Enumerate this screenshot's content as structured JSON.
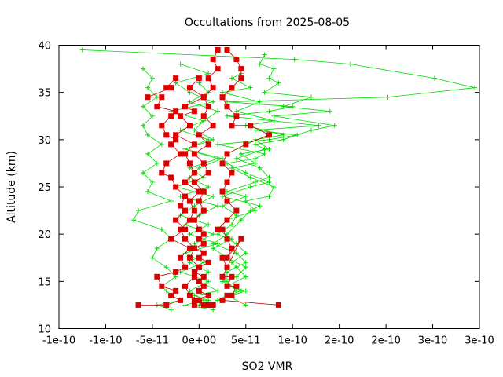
{
  "chart_data": {
    "type": "scatter",
    "title": "Occultations from 2025-08-05",
    "xlabel": "SO2 VMR",
    "ylabel": "Altitude (km)",
    "xlim": [
      -1.5e-10,
      3e-10
    ],
    "ylim": [
      10,
      40
    ],
    "xticks": [
      -1.5e-10,
      -1e-10,
      -5e-11,
      0,
      5e-11,
      1e-10,
      1.5e-10,
      2e-10,
      2.5e-10,
      3e-10
    ],
    "xtick_labels": [
      "-1e-10",
      "-1e-10",
      "-5e-11",
      "0e+00",
      "5e-11",
      "1e-10",
      "2e-10",
      "2e-10",
      "3e-10",
      "3e-10"
    ],
    "yticks": [
      10,
      15,
      20,
      25,
      30,
      35,
      40
    ],
    "ytick_labels": [
      "10",
      "15",
      "20",
      "25",
      "30",
      "35",
      "40"
    ],
    "grid": false,
    "legend": "none",
    "series": [
      {
        "color": "#00dd00",
        "marker": "plus",
        "x": [
          -1.25e-10,
          1.02e-10,
          1.62e-10,
          2.52e-10,
          2.95e-10,
          2.02e-10,
          3e-11,
          1e-10,
          7.5e-11,
          3e-11,
          1.28e-10,
          6e-11,
          1.05e-10,
          7.5e-11,
          2e-11,
          7e-11,
          6e-11,
          3e-11,
          5e-11,
          7.5e-11,
          5.5e-11,
          2.5e-11,
          6.5e-11,
          5.5e-11,
          4.5e-11,
          3e-11,
          1.5e-11,
          4e-11,
          5e-11,
          3e-11,
          3e-11,
          4e-11,
          2e-11
        ],
        "y": [
          39.5,
          38.5,
          38.0,
          36.5,
          35.5,
          34.5,
          34.0,
          33.5,
          33.0,
          32.5,
          31.5,
          31.0,
          30.5,
          30.0,
          29.5,
          28.5,
          28.0,
          27.5,
          26.5,
          25.5,
          25.0,
          24.0,
          23.0,
          22.5,
          21.5,
          20.0,
          19.0,
          18.0,
          17.0,
          16.0,
          15.0,
          14.0,
          13.0
        ]
      },
      {
        "color": "#00dd00",
        "marker": "plus",
        "x": [
          7e-11,
          6.5e-11,
          8e-11,
          7.5e-11,
          8.5e-11,
          7e-11,
          1.2e-10,
          9e-11,
          1.4e-10,
          8e-11,
          1.45e-10,
          1.2e-10,
          9e-11,
          6e-11,
          7e-11,
          4e-11,
          6.5e-11,
          7.5e-11,
          6e-11,
          3e-11,
          5e-11,
          2.5e-11,
          4e-11,
          3.5e-11,
          2e-11,
          4e-11,
          5e-11,
          3.5e-11,
          4e-11,
          5e-11,
          3e-11,
          5e-11,
          2e-11
        ],
        "y": [
          39.0,
          38.0,
          37.5,
          36.5,
          36.0,
          35.0,
          34.5,
          33.5,
          33.0,
          32.5,
          31.5,
          31.0,
          30.0,
          29.5,
          29.0,
          28.0,
          27.0,
          26.0,
          25.5,
          24.5,
          24.0,
          23.0,
          22.0,
          21.0,
          20.0,
          19.0,
          18.0,
          17.0,
          16.5,
          15.5,
          14.5,
          14.0,
          13.0
        ]
      },
      {
        "color": "#00dd00",
        "marker": "plus",
        "x": [
          -6e-11,
          -5e-11,
          -5.5e-11,
          -4.5e-11,
          -6e-11,
          -5e-11,
          -6e-11,
          -5.5e-11,
          -4e-11,
          -5.5e-11,
          -4.5e-11,
          -6e-11,
          -5e-11,
          -5.5e-11,
          -3e-11,
          -6.5e-11,
          -7e-11,
          -4e-11,
          -3e-11,
          -4.5e-11,
          -5e-11,
          -3.5e-11,
          -2.5e-11,
          -4e-11,
          -3.5e-11,
          -3e-11,
          -2e-11,
          -4.5e-11,
          -3e-11
        ],
        "y": [
          37.5,
          36.5,
          35.5,
          34.5,
          33.5,
          32.5,
          31.5,
          30.5,
          29.5,
          28.5,
          27.5,
          26.5,
          25.5,
          24.5,
          23.5,
          22.5,
          21.5,
          20.5,
          19.5,
          18.5,
          17.5,
          16.5,
          15.5,
          14.5,
          14.0,
          13.5,
          13.0,
          12.5,
          12.0
        ]
      },
      {
        "color": "#00dd00",
        "marker": "plus",
        "x": [
          -2e-11,
          1e-11,
          -2.5e-11,
          -1e-11,
          1.5e-11,
          -3e-11,
          5e-12,
          -2e-11,
          1e-11,
          -1.5e-11,
          2e-11,
          -1e-11,
          5e-12,
          -2.5e-11,
          1.5e-11,
          -5e-12,
          -2e-11,
          1e-11,
          -1e-11,
          2e-11,
          -1.5e-11,
          5e-12,
          -2e-11,
          1e-11,
          -1e-11,
          5e-12,
          -1.5e-11,
          1.5e-11
        ],
        "y": [
          38.0,
          37.0,
          36.0,
          35.0,
          34.0,
          33.0,
          32.0,
          31.0,
          30.0,
          29.0,
          28.0,
          27.0,
          26.0,
          25.0,
          24.0,
          23.0,
          22.0,
          21.0,
          20.0,
          19.0,
          18.0,
          17.0,
          16.0,
          15.0,
          14.0,
          13.0,
          12.5,
          12.0
        ]
      },
      {
        "color": "#00dd00",
        "marker": "plus",
        "x": [
          4.5e-11,
          3.5e-11,
          5.5e-11,
          2.5e-11,
          6.5e-11,
          4e-11,
          8e-11,
          5e-11,
          9e-11,
          6e-11,
          7.5e-11,
          4.5e-11,
          6e-11,
          3.5e-11,
          5.5e-11,
          8e-11,
          7.5e-11,
          5e-11,
          6e-11,
          3e-11,
          2e-11,
          3.5e-11,
          1.5e-11,
          3e-11,
          5e-11,
          4e-11,
          2.5e-11,
          4.5e-11,
          3e-11,
          5e-11
        ],
        "y": [
          37.0,
          36.5,
          35.5,
          35.0,
          34.0,
          33.0,
          32.0,
          31.5,
          30.5,
          30.0,
          29.0,
          28.5,
          27.5,
          27.0,
          26.0,
          25.0,
          24.0,
          23.5,
          22.5,
          21.5,
          20.5,
          19.5,
          18.5,
          17.5,
          16.5,
          15.5,
          15.0,
          14.0,
          13.5,
          12.5
        ]
      },
      {
        "color": "#00dd00",
        "marker": "plus",
        "x": [
          0.0,
          1e-11,
          -1e-11,
          2e-11,
          5e-12,
          -5e-12,
          1.5e-11,
          -1.5e-11,
          2.5e-11,
          0.0,
          -1e-11,
          1e-11,
          -2e-11,
          2e-11,
          0.0,
          -1.5e-11,
          1.5e-11,
          -5e-12,
          5e-12,
          -1e-11,
          1e-11,
          0.0,
          2e-11,
          -5e-12,
          1e-11,
          0.0
        ],
        "y": [
          36.0,
          35.0,
          34.0,
          33.0,
          32.0,
          31.0,
          30.0,
          29.0,
          28.0,
          27.0,
          26.0,
          25.0,
          24.0,
          23.0,
          22.0,
          21.0,
          20.0,
          19.0,
          18.0,
          17.0,
          16.0,
          15.0,
          14.0,
          13.5,
          13.0,
          12.5
        ]
      },
      {
        "color": "#dd0000",
        "marker": "square",
        "x": [
          2e-11,
          1.5e-11,
          2e-11,
          1e-11,
          1.5e-11,
          5e-12,
          1e-11,
          5e-12,
          1.5e-11,
          0.0,
          1e-11,
          -5e-12,
          5e-12,
          1e-11,
          -5e-12,
          5e-12,
          0.0,
          5e-12,
          -5e-12,
          0.0,
          5e-12,
          0.0,
          5e-12,
          -5e-12,
          5e-12,
          0.0,
          1e-11,
          0.0,
          -5e-12,
          5e-12,
          0.0,
          5e-12,
          0.0,
          1e-11,
          -5e-12,
          5e-12,
          1.5e-11,
          1e-11,
          1.2e-11
        ],
        "y": [
          39.5,
          38.5,
          37.5,
          36.5,
          35.5,
          34.5,
          33.5,
          32.5,
          31.5,
          30.5,
          29.5,
          28.5,
          27.5,
          26.5,
          25.5,
          24.5,
          23.5,
          22.5,
          21.5,
          20.5,
          20.0,
          19.5,
          19.0,
          18.5,
          18.0,
          17.5,
          17.0,
          16.5,
          16.0,
          15.5,
          15.0,
          14.5,
          14.0,
          13.5,
          13.0,
          12.5,
          12.5,
          12.5,
          12.5
        ]
      },
      {
        "color": "#dd0000",
        "marker": "square",
        "x": [
          3e-11,
          4e-11,
          4.5e-11,
          4.5e-11,
          3.5e-11,
          2.5e-11,
          3e-11,
          4e-11,
          3.5e-11,
          5.5e-11,
          7.5e-11,
          5e-11,
          3e-11,
          2.5e-11,
          3.5e-11,
          3e-11,
          2.5e-11,
          3e-11,
          4e-11,
          3e-11,
          2e-11,
          2.5e-11,
          3e-11,
          3.5e-11,
          3e-11,
          4.5e-11,
          3e-11,
          2.5e-11,
          3e-11,
          2.5e-11,
          3.5e-11,
          3e-11,
          4e-11,
          3.5e-11,
          3e-11,
          2.5e-11,
          8.5e-11
        ],
        "y": [
          39.5,
          38.5,
          37.5,
          36.5,
          35.5,
          34.5,
          33.5,
          32.5,
          31.5,
          31.5,
          30.5,
          29.5,
          28.5,
          27.5,
          26.5,
          25.5,
          24.5,
          23.5,
          22.5,
          21.5,
          20.5,
          20.5,
          19.5,
          18.5,
          17.5,
          19.5,
          16.5,
          17.5,
          16.5,
          15.5,
          15.5,
          14.5,
          14.5,
          13.5,
          13.5,
          13.0,
          12.5
        ]
      },
      {
        "color": "#dd0000",
        "marker": "square",
        "x": [
          -2.5e-11,
          -3.5e-11,
          -3e-11,
          -5.5e-11,
          -4e-11,
          -4.5e-11,
          -2.5e-11,
          -3e-11,
          -4e-11,
          -3.5e-11,
          -2.5e-11,
          -3e-11,
          -2e-11,
          -3.5e-11,
          -4e-11,
          -3e-11,
          -2.5e-11,
          -1.5e-11,
          -2e-11,
          -1.5e-11,
          -2.5e-11,
          -1.5e-11,
          -3e-11,
          -1e-11,
          -2e-11,
          -1.5e-11,
          -2.5e-11,
          -4.5e-11,
          -4e-11,
          -2.5e-11,
          -3e-11,
          -2e-11,
          -3.5e-11,
          -6.5e-11
        ],
        "y": [
          36.5,
          35.5,
          35.5,
          34.5,
          34.5,
          33.5,
          33.0,
          32.5,
          31.5,
          30.5,
          30.0,
          29.5,
          28.5,
          27.5,
          26.5,
          26.0,
          25.0,
          24.0,
          23.0,
          22.5,
          21.5,
          20.5,
          19.5,
          18.5,
          17.5,
          16.5,
          16.0,
          15.5,
          14.5,
          14.0,
          13.5,
          13.0,
          12.5,
          12.5
        ]
      },
      {
        "color": "#dd0000",
        "marker": "square",
        "x": [
          0.0,
          -1e-11,
          5e-12,
          -1.5e-11,
          -5e-12,
          -2e-11,
          -1e-11,
          -2.5e-11,
          -5e-12,
          -1.5e-11,
          -1e-11,
          -5e-12,
          -1.5e-11,
          0.0,
          -1e-11,
          -5e-12,
          -1e-11,
          -2e-11,
          -1.5e-11,
          -5e-12,
          -1e-11,
          0.0,
          -5e-12,
          -1.5e-11,
          -1e-11,
          0.0,
          -5e-12
        ],
        "y": [
          36.5,
          35.5,
          34.5,
          33.5,
          33.0,
          32.5,
          31.5,
          30.5,
          29.5,
          28.5,
          27.5,
          26.5,
          25.5,
          24.5,
          23.5,
          22.5,
          21.5,
          20.5,
          19.5,
          18.5,
          17.5,
          16.5,
          15.5,
          14.5,
          13.5,
          13.0,
          12.5
        ]
      }
    ]
  }
}
